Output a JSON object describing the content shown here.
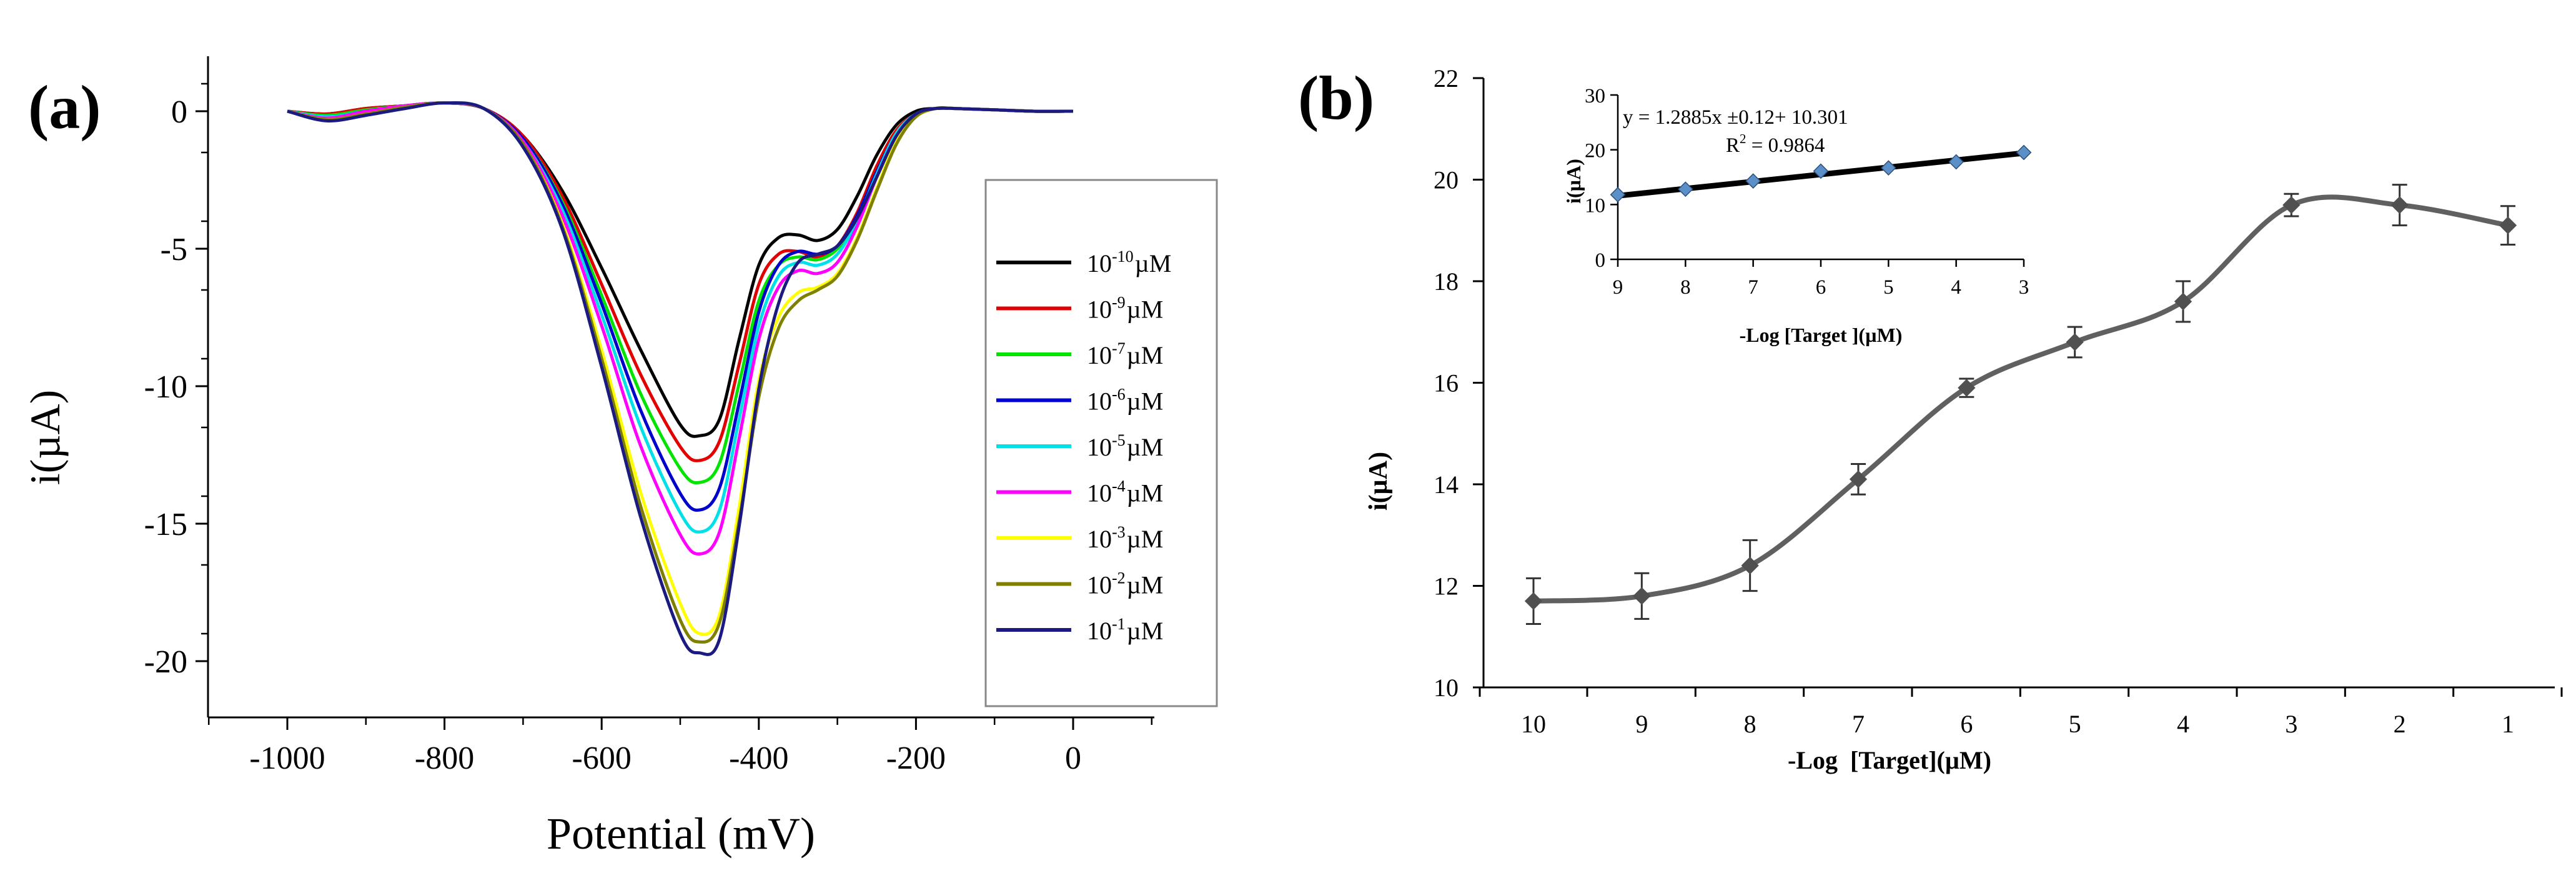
{
  "chart_data": [
    {
      "panel_label": "(a)",
      "type": "line",
      "title": "",
      "xlabel": "Potential (mV)",
      "ylabel": "i(µA)",
      "xlim": [
        -1100,
        100
      ],
      "ylim": [
        -22,
        2
      ],
      "xticks": [
        -1000,
        -800,
        -600,
        -400,
        -200,
        0
      ],
      "yticks": [
        0,
        -5,
        -10,
        -15,
        -20
      ],
      "grid": false,
      "legend_position": "right",
      "legend_unit": "µM",
      "x": [
        -1000,
        -950,
        -900,
        -850,
        -800,
        -750,
        -700,
        -650,
        -600,
        -550,
        -500,
        -475,
        -450,
        -425,
        -400,
        -375,
        -350,
        -325,
        -300,
        -275,
        -250,
        -225,
        -200,
        -175,
        -150,
        -100,
        -50,
        0
      ],
      "series": [
        {
          "name": "10-10",
          "base": "10",
          "exp": "-10",
          "color": "#000000",
          "values": [
            0,
            -0.1,
            0.1,
            0.2,
            0.3,
            0.1,
            -0.9,
            -2.9,
            -5.7,
            -8.7,
            -11.4,
            -11.8,
            -11.2,
            -8.3,
            -5.6,
            -4.6,
            -4.5,
            -4.7,
            -4.3,
            -3.1,
            -1.6,
            -0.5,
            0,
            0.1,
            0.1,
            0.05,
            0,
            0
          ]
        },
        {
          "name": "10-9",
          "base": "10",
          "exp": "-9",
          "color": "#e30000",
          "values": [
            0,
            -0.1,
            0.1,
            0.2,
            0.3,
            0.1,
            -0.9,
            -3.1,
            -6.3,
            -9.6,
            -12.2,
            -12.7,
            -12.0,
            -9.2,
            -6.3,
            -5.2,
            -5.1,
            -5.3,
            -4.9,
            -3.7,
            -2.0,
            -0.7,
            -0.1,
            0.1,
            0.1,
            0.05,
            0,
            0
          ]
        },
        {
          "name": "10-7",
          "base": "10",
          "exp": "-7",
          "color": "#00e400",
          "values": [
            0,
            -0.15,
            0.05,
            0.2,
            0.3,
            0.1,
            -1.0,
            -3.3,
            -6.7,
            -10.3,
            -13.0,
            -13.5,
            -12.8,
            -9.9,
            -6.9,
            -5.6,
            -5.3,
            -5.4,
            -5.0,
            -3.9,
            -2.2,
            -0.8,
            -0.1,
            0.1,
            0.1,
            0.05,
            0,
            0
          ]
        },
        {
          "name": "10-6",
          "base": "10",
          "exp": "-6",
          "color": "#0000cc",
          "values": [
            0,
            -0.2,
            0,
            0.2,
            0.3,
            0.1,
            -1.0,
            -3.4,
            -7.0,
            -10.9,
            -13.9,
            -14.5,
            -13.7,
            -10.6,
            -7.3,
            -5.6,
            -5.1,
            -5.2,
            -4.9,
            -3.8,
            -2.2,
            -0.8,
            -0.1,
            0.1,
            0.1,
            0.05,
            0,
            0
          ]
        },
        {
          "name": "10-5",
          "base": "10",
          "exp": "-5",
          "color": "#00e0e8",
          "values": [
            0,
            -0.2,
            0,
            0.2,
            0.3,
            0.1,
            -1.1,
            -3.6,
            -7.4,
            -11.5,
            -14.6,
            -15.3,
            -14.5,
            -11.2,
            -7.8,
            -6.0,
            -5.5,
            -5.6,
            -5.2,
            -4.0,
            -2.3,
            -0.8,
            -0.1,
            0.1,
            0.1,
            0.05,
            0,
            0
          ]
        },
        {
          "name": "10-4",
          "base": "10",
          "exp": "-4",
          "color": "#ff00ff",
          "values": [
            0,
            -0.25,
            0,
            0.2,
            0.3,
            0.1,
            -1.1,
            -3.8,
            -7.8,
            -12.2,
            -15.4,
            -16.1,
            -15.3,
            -11.9,
            -8.3,
            -6.4,
            -5.8,
            -5.9,
            -5.5,
            -4.2,
            -2.4,
            -0.9,
            -0.1,
            0.1,
            0.1,
            0.05,
            0,
            0
          ]
        },
        {
          "name": "10-3",
          "base": "10",
          "exp": "-3",
          "color": "#ffff00",
          "values": [
            0,
            -0.3,
            -0.1,
            0.15,
            0.3,
            0.1,
            -1.2,
            -4.1,
            -8.7,
            -13.9,
            -17.9,
            -19.0,
            -18.3,
            -14.4,
            -9.8,
            -7.5,
            -6.6,
            -6.4,
            -5.9,
            -4.6,
            -2.8,
            -1.1,
            -0.2,
            0.1,
            0.1,
            0.05,
            0,
            0
          ]
        },
        {
          "name": "10-2",
          "base": "10",
          "exp": "-2",
          "color": "#808000",
          "values": [
            0,
            -0.3,
            -0.1,
            0.15,
            0.3,
            0.1,
            -1.2,
            -4.2,
            -9.0,
            -14.4,
            -18.5,
            -19.3,
            -18.6,
            -14.9,
            -10.4,
            -7.9,
            -6.9,
            -6.5,
            -6.0,
            -4.7,
            -2.9,
            -1.2,
            -0.2,
            0.1,
            0.1,
            0.05,
            0,
            0
          ]
        },
        {
          "name": "10-1",
          "base": "10",
          "exp": "-1",
          "color": "#1a1a80",
          "values": [
            0,
            -0.35,
            -0.15,
            0.1,
            0.3,
            0.1,
            -1.3,
            -4.3,
            -9.3,
            -14.8,
            -19.0,
            -19.7,
            -19.2,
            -15.1,
            -10.1,
            -7.0,
            -5.5,
            -5.2,
            -4.9,
            -3.9,
            -2.4,
            -0.9,
            -0.1,
            0.1,
            0.1,
            0.05,
            0,
            0
          ]
        }
      ]
    },
    {
      "panel_label": "(b)",
      "type": "line",
      "title": "",
      "xlabel": "-Log  [Target](µM)",
      "ylabel": "i(µA)",
      "xlim": [
        10.7,
        0.3
      ],
      "ylim": [
        10,
        22
      ],
      "xticks": [
        10,
        9,
        8,
        7,
        6,
        5,
        4,
        3,
        2,
        1
      ],
      "yticks": [
        10,
        12,
        14,
        16,
        18,
        20,
        22
      ],
      "grid": false,
      "x": [
        10,
        9,
        8,
        7,
        6,
        5,
        4,
        3,
        2,
        1
      ],
      "values": [
        11.7,
        11.8,
        12.4,
        14.1,
        15.9,
        16.8,
        17.6,
        19.5,
        19.5,
        19.1
      ],
      "errors": [
        0.45,
        0.45,
        0.5,
        0.3,
        0.18,
        0.3,
        0.4,
        0.22,
        0.4,
        0.38
      ],
      "line_color": "#606060",
      "marker_color": "#505050",
      "inset": {
        "type": "line",
        "xlabel": "-Log [Target ](µM)",
        "ylabel": "i(µA)",
        "xlim": [
          9,
          3
        ],
        "ylim": [
          0,
          30
        ],
        "xticks": [
          9,
          8,
          7,
          6,
          5,
          4,
          3
        ],
        "yticks": [
          0,
          10,
          20,
          30
        ],
        "x": [
          9,
          8,
          7,
          6,
          5,
          4,
          3
        ],
        "values": [
          11.8,
          12.8,
          14.3,
          16.1,
          16.7,
          17.8,
          19.5
        ],
        "fit_line": {
          "x": [
            9,
            3
          ],
          "y": [
            11.6,
            19.4
          ]
        },
        "equation": "y = 1.2885x ±0.12+ 10.301",
        "r2_label": "R",
        "r2_exp": "2",
        "r2_value": " = 0.9864",
        "marker_color": "#5b8fc7"
      }
    }
  ]
}
